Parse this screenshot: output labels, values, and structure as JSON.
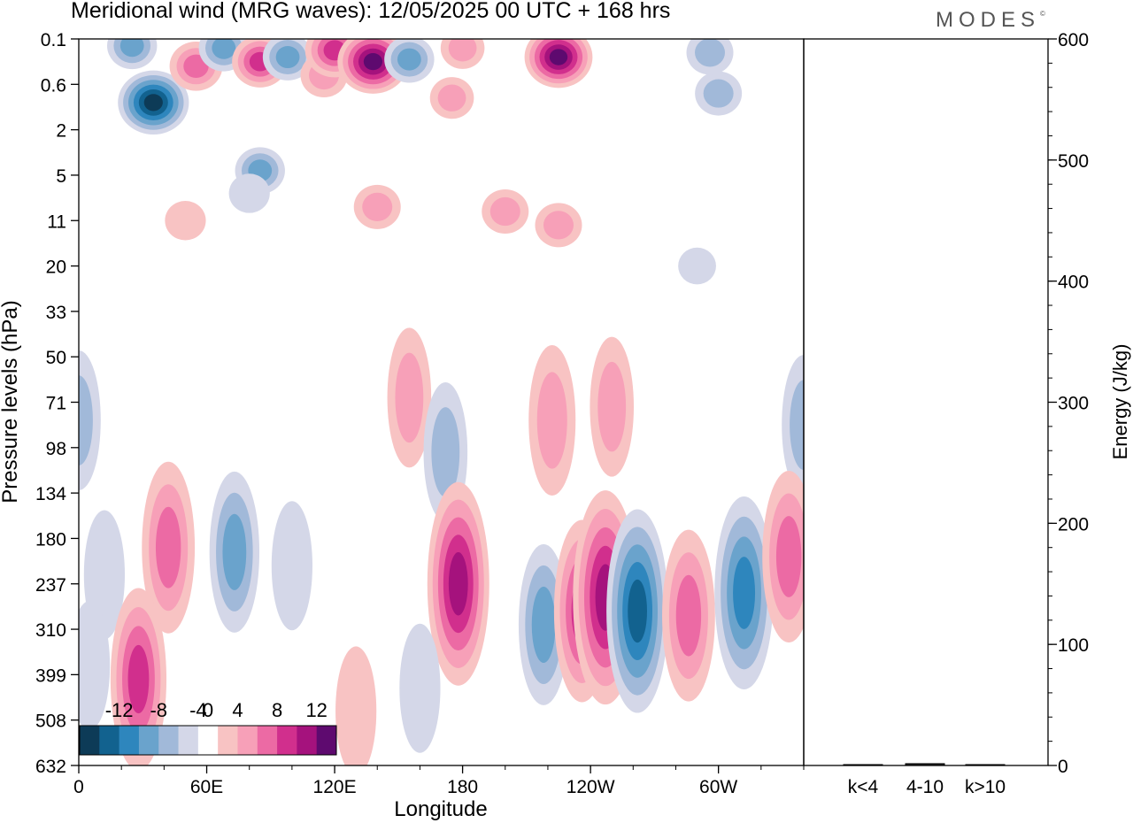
{
  "header": {
    "title": "Meridional wind (MRG waves):  12/05/2025  00 UTC  + 168 hrs",
    "brand": "MODES",
    "brand_mark": "©"
  },
  "chart_data": [
    {
      "type": "heatmap",
      "title": "Meridional wind (MRG waves):  12/05/2025  00 UTC  + 168 hrs",
      "xlabel": "Longitude",
      "ylabel": "Pressure levels (hPa)",
      "x_ticks": [
        "0",
        "60E",
        "120E",
        "180",
        "120W",
        "60W"
      ],
      "x_tick_degrees": [
        0,
        60,
        120,
        180,
        240,
        300
      ],
      "xlim": [
        0,
        340
      ],
      "y_ticks": [
        "0.1",
        "0.6",
        "2",
        "5",
        "11",
        "20",
        "33",
        "50",
        "71",
        "98",
        "134",
        "180",
        "237",
        "310",
        "399",
        "508",
        "632"
      ],
      "colorbar": {
        "labels": [
          "-12",
          "-8",
          "-4",
          "0",
          "4",
          "8",
          "12"
        ],
        "levels": [
          -14,
          -12,
          -10,
          -8,
          -6,
          -4,
          -2,
          2,
          4,
          6,
          8,
          10,
          12,
          14
        ],
        "colors": [
          "#0d3b57",
          "#12628f",
          "#2e86bd",
          "#6aa3cc",
          "#a1b9d9",
          "#d4d7e8",
          "#ffffff",
          "#f8c3c3",
          "#f7a0b8",
          "#ec6aa4",
          "#d12f8d",
          "#a5127d",
          "#5e0a6f"
        ]
      },
      "features": [
        {
          "lon": 25,
          "level_index": 0.15,
          "value": -6
        },
        {
          "lon": 35,
          "level_index": 1.4,
          "value": -13
        },
        {
          "lon": 55,
          "level_index": 0.6,
          "value": 7
        },
        {
          "lon": 68,
          "level_index": 0.2,
          "value": -6
        },
        {
          "lon": 85,
          "level_index": 0.5,
          "value": 8
        },
        {
          "lon": 98,
          "level_index": 0.4,
          "value": -6
        },
        {
          "lon": 115,
          "level_index": 0.8,
          "value": 5
        },
        {
          "lon": 120,
          "level_index": 0.25,
          "value": 9
        },
        {
          "lon": 138,
          "level_index": 0.5,
          "value": 13
        },
        {
          "lon": 155,
          "level_index": 0.45,
          "value": -6
        },
        {
          "lon": 175,
          "level_index": 1.3,
          "value": 4
        },
        {
          "lon": 180,
          "level_index": 0.2,
          "value": 4
        },
        {
          "lon": 225,
          "level_index": 0.4,
          "value": 12
        },
        {
          "lon": 300,
          "level_index": 1.2,
          "value": -5
        },
        {
          "lon": 296,
          "level_index": 0.3,
          "value": -5
        },
        {
          "lon": 85,
          "level_index": 2.9,
          "value": -6
        },
        {
          "lon": 140,
          "level_index": 3.7,
          "value": 5
        },
        {
          "lon": 200,
          "level_index": 3.8,
          "value": 5
        },
        {
          "lon": 80,
          "level_index": 3.4,
          "value": -3
        },
        {
          "lon": 50,
          "level_index": 4.0,
          "value": 3
        },
        {
          "lon": 225,
          "level_index": 4.1,
          "value": 5
        },
        {
          "lon": 290,
          "level_index": 5.0,
          "value": -2
        },
        {
          "lon": 155,
          "level_index": 7.9,
          "value": 4
        },
        {
          "lon": 250,
          "level_index": 8.1,
          "value": 4
        },
        {
          "lon": 222,
          "level_index": 8.4,
          "value": 5
        },
        {
          "lon": 0,
          "level_index": 8.4,
          "value": -4
        },
        {
          "lon": 340,
          "level_index": 8.5,
          "value": -4
        },
        {
          "lon": 172,
          "level_index": 9.1,
          "value": -4
        },
        {
          "lon": 42,
          "level_index": 11.2,
          "value": 7
        },
        {
          "lon": 73,
          "level_index": 11.3,
          "value": -6
        },
        {
          "lon": 100,
          "level_index": 11.6,
          "value": -3
        },
        {
          "lon": 12,
          "level_index": 11.8,
          "value": -3
        },
        {
          "lon": 178,
          "level_index": 12.2,
          "value": 4
        },
        {
          "lon": 178,
          "level_index": 12.0,
          "value": 10
        },
        {
          "lon": 218,
          "level_index": 12.9,
          "value": -6
        },
        {
          "lon": 236,
          "level_index": 12.6,
          "value": 8
        },
        {
          "lon": 247,
          "level_index": 12.3,
          "value": 11
        },
        {
          "lon": 262,
          "level_index": 12.6,
          "value": -10
        },
        {
          "lon": 286,
          "level_index": 12.7,
          "value": 7
        },
        {
          "lon": 312,
          "level_index": 12.2,
          "value": -9
        },
        {
          "lon": 333,
          "level_index": 11.4,
          "value": 7
        },
        {
          "lon": 28,
          "level_index": 14.1,
          "value": 8
        },
        {
          "lon": 130,
          "level_index": 14.8,
          "value": 3
        },
        {
          "lon": 160,
          "level_index": 14.3,
          "value": -3
        },
        {
          "lon": 5,
          "level_index": 13.8,
          "value": -3
        }
      ]
    },
    {
      "type": "bar",
      "ylabel": "Energy (J/kg)",
      "categories": [
        "k<4",
        "4-10",
        "k>10"
      ],
      "values": [
        0,
        1.5,
        0
      ],
      "ylim": [
        0,
        600
      ],
      "y_ticks": [
        "0",
        "100",
        "200",
        "300",
        "400",
        "500",
        "600"
      ]
    }
  ]
}
